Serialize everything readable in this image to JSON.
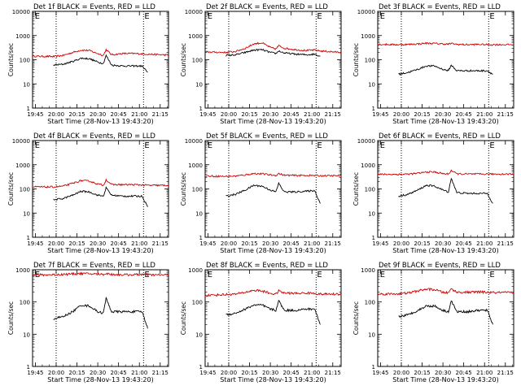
{
  "chart_data": [
    {
      "type": "line",
      "title": "Det 1f BLACK = Events, RED = LLD",
      "xlabel": "Start Time (28-Nov-13 19:43:20)",
      "ylabel": "Counts/sec",
      "x_ticks": [
        "19:45",
        "20:00",
        "20:15",
        "20:30",
        "20:45",
        "21:00",
        "21:15"
      ],
      "y_ticks": [
        "1",
        "10",
        "100",
        "1000",
        "10000"
      ],
      "y_scale": "log",
      "ylim": [
        1,
        10000
      ],
      "xlim": [
        "19:43",
        "21:21"
      ],
      "vlines": [
        "20:00",
        "21:03"
      ],
      "markers": [
        {
          "text": "E",
          "x": "19:44"
        },
        {
          "text": "E",
          "x": "21:03"
        }
      ],
      "x": [
        "19:58",
        "20:05",
        "20:12",
        "20:18",
        "20:24",
        "20:30",
        "20:34",
        "20:36",
        "20:40",
        "20:48",
        "20:56",
        "21:02",
        "21:06"
      ],
      "series": [
        {
          "color": "#cc0000",
          "values": [
            135,
            150,
            200,
            250,
            240,
            180,
            150,
            260,
            160,
            180,
            180,
            175,
            170
          ],
          "ext": [
            "19:43",
            "21:21"
          ],
          "ext_values": [
            140,
            155
          ]
        },
        {
          "color": "#000000",
          "values": [
            60,
            65,
            85,
            115,
            110,
            80,
            70,
            150,
            60,
            55,
            55,
            55,
            30
          ]
        }
      ]
    },
    {
      "type": "line",
      "title": "Det 2f BLACK = Events, RED = LLD",
      "xlabel": "Start Time (28-Nov-13 19:43:20)",
      "ylabel": "Counts/sec",
      "x_ticks": [
        "19:45",
        "20:00",
        "20:15",
        "20:30",
        "20:45",
        "21:00",
        "21:15"
      ],
      "y_ticks": [
        "1",
        "10",
        "100",
        "1000",
        "10000"
      ],
      "y_scale": "log",
      "ylim": [
        1,
        10000
      ],
      "xlim": [
        "19:43",
        "21:21"
      ],
      "vlines": [
        "20:00",
        "21:03"
      ],
      "markers": [
        {
          "text": "E",
          "x": "19:44"
        },
        {
          "text": "E",
          "x": "21:03"
        }
      ],
      "x": [
        "19:58",
        "20:05",
        "20:12",
        "20:18",
        "20:24",
        "20:30",
        "20:34",
        "20:36",
        "20:40",
        "20:48",
        "20:56",
        "21:02",
        "21:06"
      ],
      "series": [
        {
          "color": "#cc0000",
          "values": [
            200,
            220,
            300,
            450,
            500,
            320,
            280,
            380,
            300,
            260,
            240,
            250,
            230
          ],
          "ext": [
            "19:43",
            "21:21"
          ],
          "ext_values": [
            210,
            200
          ]
        },
        {
          "color": "#000000",
          "values": [
            150,
            160,
            200,
            250,
            260,
            200,
            180,
            230,
            190,
            170,
            160,
            170,
            140
          ]
        }
      ]
    },
    {
      "type": "line",
      "title": "Det 3f BLACK = Events, RED = LLD",
      "xlabel": "Start Time (28-Nov-13 19:43:20)",
      "ylabel": "Counts/sec",
      "x_ticks": [
        "19:45",
        "20:00",
        "20:15",
        "20:30",
        "20:45",
        "21:00",
        "21:15"
      ],
      "y_ticks": [
        "1",
        "10",
        "100",
        "1000",
        "10000"
      ],
      "y_scale": "log",
      "ylim": [
        1,
        10000
      ],
      "xlim": [
        "19:43",
        "21:21"
      ],
      "vlines": [
        "20:00",
        "21:03"
      ],
      "markers": [
        {
          "text": "E",
          "x": "19:44"
        },
        {
          "text": "E",
          "x": "21:03"
        }
      ],
      "x": [
        "19:58",
        "20:05",
        "20:12",
        "20:18",
        "20:24",
        "20:30",
        "20:34",
        "20:36",
        "20:40",
        "20:48",
        "20:56",
        "21:02",
        "21:06"
      ],
      "series": [
        {
          "color": "#cc0000",
          "values": [
            420,
            430,
            450,
            480,
            470,
            450,
            440,
            470,
            430,
            420,
            430,
            420,
            420
          ],
          "ext": [
            "19:43",
            "21:21"
          ],
          "ext_values": [
            430,
            420
          ]
        },
        {
          "color": "#000000",
          "values": [
            25,
            30,
            40,
            55,
            55,
            40,
            35,
            60,
            35,
            35,
            35,
            35,
            25
          ]
        }
      ]
    },
    {
      "type": "line",
      "title": "Det 4f BLACK = Events, RED = LLD",
      "xlabel": "Start Time (28-Nov-13 19:43:20)",
      "ylabel": "Counts/sec",
      "x_ticks": [
        "19:45",
        "20:00",
        "20:15",
        "20:30",
        "20:45",
        "21:00",
        "21:15"
      ],
      "y_ticks": [
        "1",
        "10",
        "100",
        "1000",
        "10000"
      ],
      "y_scale": "log",
      "ylim": [
        1,
        10000
      ],
      "xlim": [
        "19:43",
        "21:21"
      ],
      "vlines": [
        "20:00",
        "21:03"
      ],
      "markers": [
        {
          "text": "E",
          "x": "19:44"
        },
        {
          "text": "E",
          "x": "21:03"
        }
      ],
      "x": [
        "19:58",
        "20:05",
        "20:12",
        "20:18",
        "20:24",
        "20:30",
        "20:34",
        "20:36",
        "20:40",
        "20:48",
        "20:56",
        "21:02",
        "21:06"
      ],
      "series": [
        {
          "color": "#cc0000",
          "values": [
            120,
            130,
            170,
            220,
            210,
            160,
            140,
            240,
            150,
            150,
            150,
            145,
            140
          ],
          "ext": [
            "19:43",
            "21:21"
          ],
          "ext_values": [
            120,
            140
          ]
        },
        {
          "color": "#000000",
          "values": [
            35,
            40,
            55,
            80,
            75,
            55,
            50,
            110,
            55,
            50,
            50,
            50,
            18
          ]
        }
      ]
    },
    {
      "type": "line",
      "title": "Det 5f BLACK = Events, RED = LLD",
      "xlabel": "Start Time (28-Nov-13 19:43:20)",
      "ylabel": "Counts/sec",
      "x_ticks": [
        "19:45",
        "20:00",
        "20:15",
        "20:30",
        "20:45",
        "21:00",
        "21:15"
      ],
      "y_ticks": [
        "1",
        "10",
        "100",
        "1000",
        "10000"
      ],
      "y_scale": "log",
      "ylim": [
        1,
        10000
      ],
      "xlim": [
        "19:43",
        "21:21"
      ],
      "vlines": [
        "20:00",
        "21:03"
      ],
      "markers": [
        {
          "text": "E",
          "x": "19:44"
        },
        {
          "text": "E",
          "x": "21:03"
        }
      ],
      "x": [
        "19:58",
        "20:05",
        "20:12",
        "20:18",
        "20:24",
        "20:30",
        "20:34",
        "20:36",
        "20:40",
        "20:48",
        "20:56",
        "21:02",
        "21:06"
      ],
      "series": [
        {
          "color": "#cc0000",
          "values": [
            330,
            340,
            380,
            430,
            420,
            380,
            360,
            430,
            370,
            360,
            360,
            360,
            350
          ],
          "ext": [
            "19:43",
            "21:21"
          ],
          "ext_values": [
            340,
            350
          ]
        },
        {
          "color": "#000000",
          "values": [
            50,
            60,
            90,
            140,
            130,
            90,
            75,
            170,
            75,
            75,
            80,
            85,
            25
          ]
        }
      ]
    },
    {
      "type": "line",
      "title": "Det 6f BLACK = Events, RED = LLD",
      "xlabel": "Start Time (28-Nov-13 19:43:20)",
      "ylabel": "Counts/sec",
      "x_ticks": [
        "19:45",
        "20:00",
        "20:15",
        "20:30",
        "20:45",
        "21:00",
        "21:15"
      ],
      "y_ticks": [
        "1",
        "10",
        "100",
        "1000",
        "10000"
      ],
      "y_scale": "log",
      "ylim": [
        1,
        10000
      ],
      "xlim": [
        "19:43",
        "21:21"
      ],
      "vlines": [
        "20:00",
        "21:03"
      ],
      "markers": [
        {
          "text": "E",
          "x": "19:44"
        },
        {
          "text": "E",
          "x": "21:03"
        }
      ],
      "x": [
        "19:58",
        "20:05",
        "20:12",
        "20:18",
        "20:24",
        "20:30",
        "20:34",
        "20:36",
        "20:40",
        "20:48",
        "20:56",
        "21:02",
        "21:06"
      ],
      "series": [
        {
          "color": "#cc0000",
          "values": [
            400,
            410,
            440,
            500,
            500,
            430,
            410,
            580,
            420,
            410,
            410,
            410,
            410
          ],
          "ext": [
            "19:43",
            "21:21"
          ],
          "ext_values": [
            400,
            410
          ]
        },
        {
          "color": "#000000",
          "values": [
            50,
            60,
            90,
            140,
            130,
            90,
            75,
            280,
            70,
            65,
            65,
            65,
            25
          ]
        }
      ]
    },
    {
      "type": "line",
      "title": "Det 7f BLACK = Events, RED = LLD",
      "xlabel": "Start Time (28-Nov-13 19:43:20)",
      "ylabel": "Counts/sec",
      "x_ticks": [
        "19:45",
        "20:00",
        "20:15",
        "20:30",
        "20:45",
        "21:00",
        "21:15"
      ],
      "y_ticks": [
        "1",
        "10",
        "100",
        "1000"
      ],
      "y_scale": "log",
      "ylim": [
        1,
        1000
      ],
      "xlim": [
        "19:43",
        "21:21"
      ],
      "vlines": [
        "20:00",
        "21:03"
      ],
      "markers": [
        {
          "text": "E",
          "x": "19:44"
        },
        {
          "text": "E",
          "x": "21:03"
        }
      ],
      "x": [
        "19:58",
        "20:05",
        "20:12",
        "20:18",
        "20:24",
        "20:30",
        "20:34",
        "20:36",
        "20:40",
        "20:48",
        "20:56",
        "21:02",
        "21:06"
      ],
      "series": [
        {
          "color": "#cc0000",
          "values": [
            700,
            720,
            740,
            760,
            750,
            730,
            720,
            760,
            720,
            700,
            700,
            720,
            690
          ],
          "ext": [
            "19:43",
            "21:21"
          ],
          "ext_values": [
            680,
            690
          ]
        },
        {
          "color": "#000000",
          "values": [
            30,
            35,
            50,
            80,
            75,
            50,
            45,
            130,
            50,
            50,
            50,
            50,
            15
          ]
        }
      ]
    },
    {
      "type": "line",
      "title": "Det 8f BLACK = Events, RED = LLD",
      "xlabel": "Start Time (28-Nov-13 19:43:20)",
      "ylabel": "Counts/sec",
      "x_ticks": [
        "19:45",
        "20:00",
        "20:15",
        "20:30",
        "20:45",
        "21:00",
        "21:15"
      ],
      "y_ticks": [
        "1",
        "10",
        "100",
        "1000"
      ],
      "y_scale": "log",
      "ylim": [
        1,
        1000
      ],
      "xlim": [
        "19:43",
        "21:21"
      ],
      "vlines": [
        "20:00",
        "21:03"
      ],
      "markers": [
        {
          "text": "E",
          "x": "19:44"
        },
        {
          "text": "E",
          "x": "21:03"
        }
      ],
      "x": [
        "19:58",
        "20:05",
        "20:12",
        "20:18",
        "20:24",
        "20:30",
        "20:34",
        "20:36",
        "20:40",
        "20:48",
        "20:56",
        "21:02",
        "21:06"
      ],
      "series": [
        {
          "color": "#cc0000",
          "values": [
            170,
            175,
            200,
            230,
            220,
            185,
            175,
            220,
            190,
            185,
            190,
            185,
            175
          ],
          "ext": [
            "19:43",
            "21:21"
          ],
          "ext_values": [
            160,
            175
          ]
        },
        {
          "color": "#000000",
          "values": [
            40,
            45,
            60,
            80,
            80,
            60,
            55,
            110,
            55,
            55,
            60,
            60,
            20
          ]
        }
      ]
    },
    {
      "type": "line",
      "title": "Det 9f BLACK = Events, RED = LLD",
      "xlabel": "Start Time (28-Nov-13 19:43:20)",
      "ylabel": "Counts/sec",
      "x_ticks": [
        "19:45",
        "20:00",
        "20:15",
        "20:30",
        "20:45",
        "21:00",
        "21:15"
      ],
      "y_ticks": [
        "1",
        "10",
        "100",
        "1000"
      ],
      "y_scale": "log",
      "ylim": [
        1,
        1000
      ],
      "xlim": [
        "19:43",
        "21:21"
      ],
      "vlines": [
        "20:00",
        "21:03"
      ],
      "markers": [
        {
          "text": "E",
          "x": "19:44"
        },
        {
          "text": "E",
          "x": "21:03"
        }
      ],
      "x": [
        "19:58",
        "20:05",
        "20:12",
        "20:18",
        "20:24",
        "20:30",
        "20:34",
        "20:36",
        "20:40",
        "20:48",
        "20:56",
        "21:02",
        "21:06"
      ],
      "series": [
        {
          "color": "#cc0000",
          "values": [
            180,
            190,
            220,
            250,
            240,
            200,
            190,
            260,
            200,
            200,
            205,
            200,
            195
          ],
          "ext": [
            "19:43",
            "21:21"
          ],
          "ext_values": [
            175,
            195
          ]
        },
        {
          "color": "#000000",
          "values": [
            35,
            40,
            55,
            75,
            75,
            55,
            50,
            110,
            50,
            50,
            55,
            55,
            20
          ]
        }
      ]
    }
  ]
}
